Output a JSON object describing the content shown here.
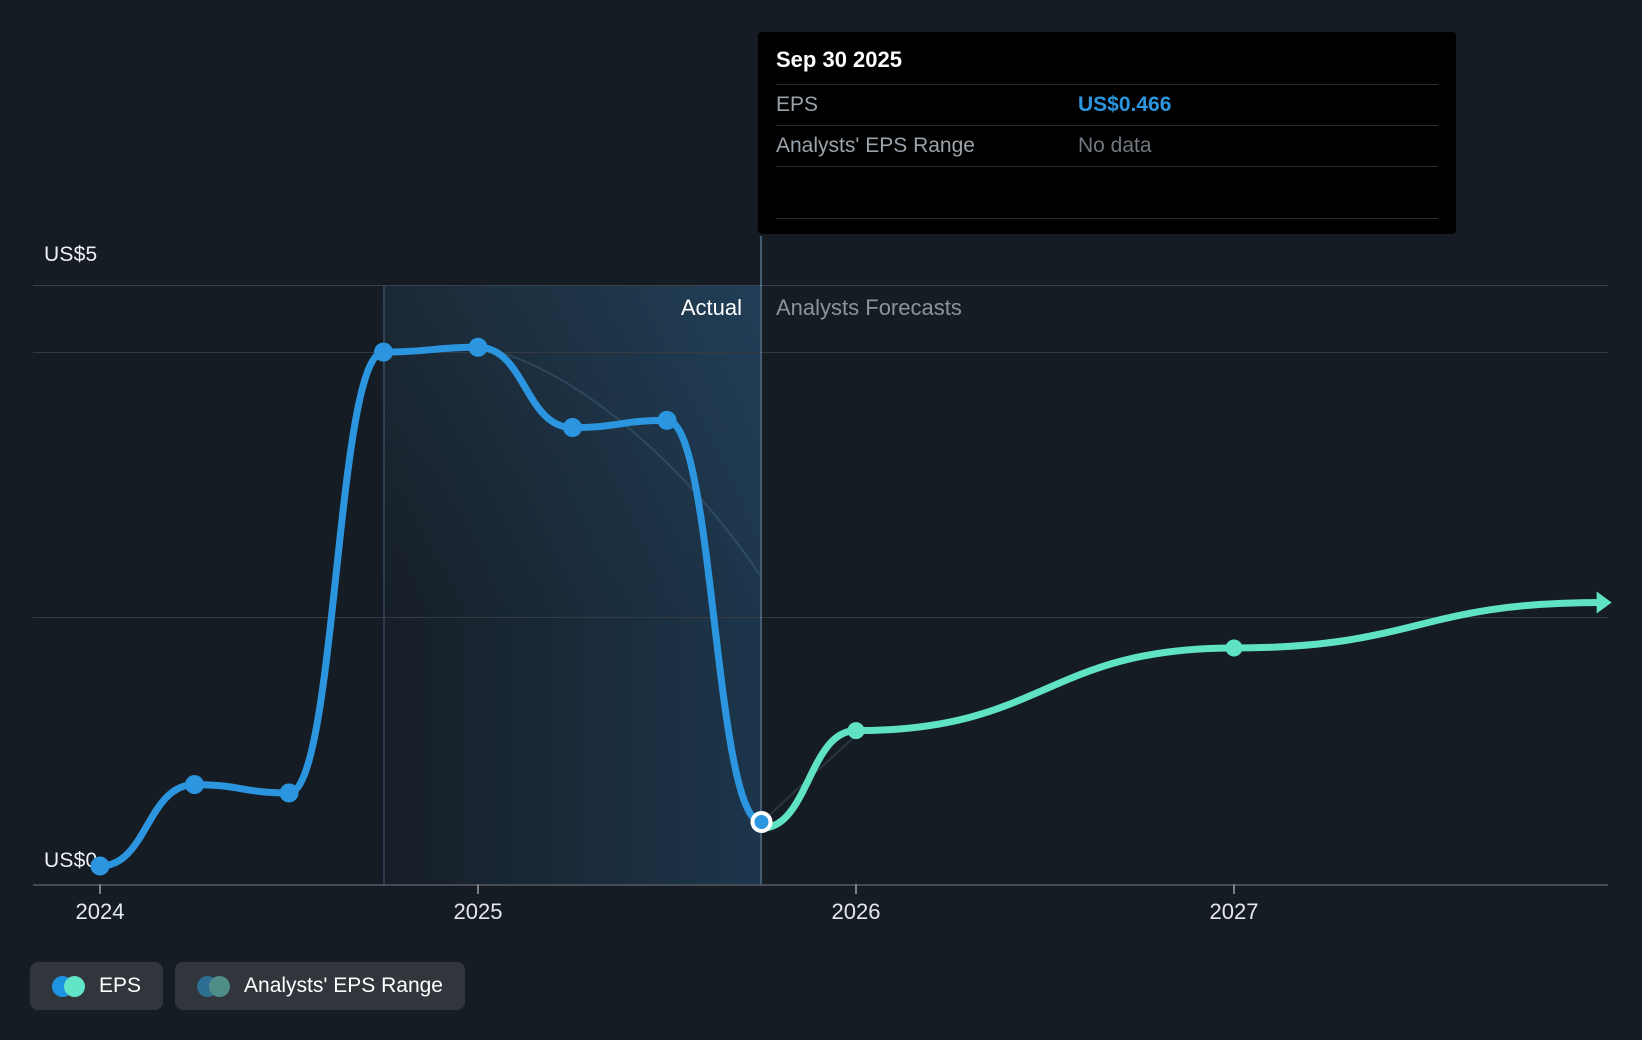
{
  "header": {
    "actual_label": "Actual",
    "forecast_label": "Analysts Forecasts"
  },
  "tooltip": {
    "date": "Sep 30 2025",
    "rows": [
      {
        "label": "EPS",
        "value": "US$0.466"
      },
      {
        "label": "Analysts' EPS Range",
        "value": "No data"
      }
    ]
  },
  "y_axis": {
    "top_label": "US$5",
    "bottom_label": "US$0"
  },
  "x_axis": {
    "labels": [
      "2024",
      "2025",
      "2026",
      "2027"
    ]
  },
  "legend": [
    {
      "label": "EPS",
      "colors": [
        "#1E94E0",
        "#62E4C6"
      ]
    },
    {
      "label": "Analysts' EPS Range",
      "colors": [
        "#2D6E93",
        "#4F8E86"
      ]
    }
  ],
  "colors": {
    "actual_line": "#2B96DF",
    "forecast_line": "#5FE3C3",
    "current_point_ring": "#FFFFFF"
  },
  "chart_data": {
    "type": "line",
    "title": "EPS actual vs analysts forecast",
    "x_ticks": [
      2024,
      2025,
      2026,
      2027
    ],
    "y_axis_range": [
      0,
      5
    ],
    "y_gridline_values": [
      5,
      2.5,
      0
    ],
    "highlight_band_x": [
      2024.75,
      2025.75
    ],
    "divider_x": 2025.75,
    "current_point": {
      "x": 2025.75,
      "y": 0.466,
      "date": "Sep 30 2025"
    },
    "series": [
      {
        "name": "EPS",
        "role": "actual",
        "color": "#2B96DF",
        "x": [
          2024.0,
          2024.25,
          2024.5,
          2024.75,
          2025.0,
          2025.25,
          2025.5,
          2025.75
        ],
        "y": [
          0.15,
          0.83,
          0.76,
          4.44,
          4.48,
          3.81,
          3.87,
          0.466
        ]
      },
      {
        "name": "EPS analysts forecast",
        "role": "forecast",
        "color": "#5FE3C3",
        "x": [
          2025.75,
          2026.0,
          2027.0,
          2027.97
        ],
        "y": [
          0.466,
          1.28,
          1.97,
          2.35
        ]
      }
    ]
  }
}
